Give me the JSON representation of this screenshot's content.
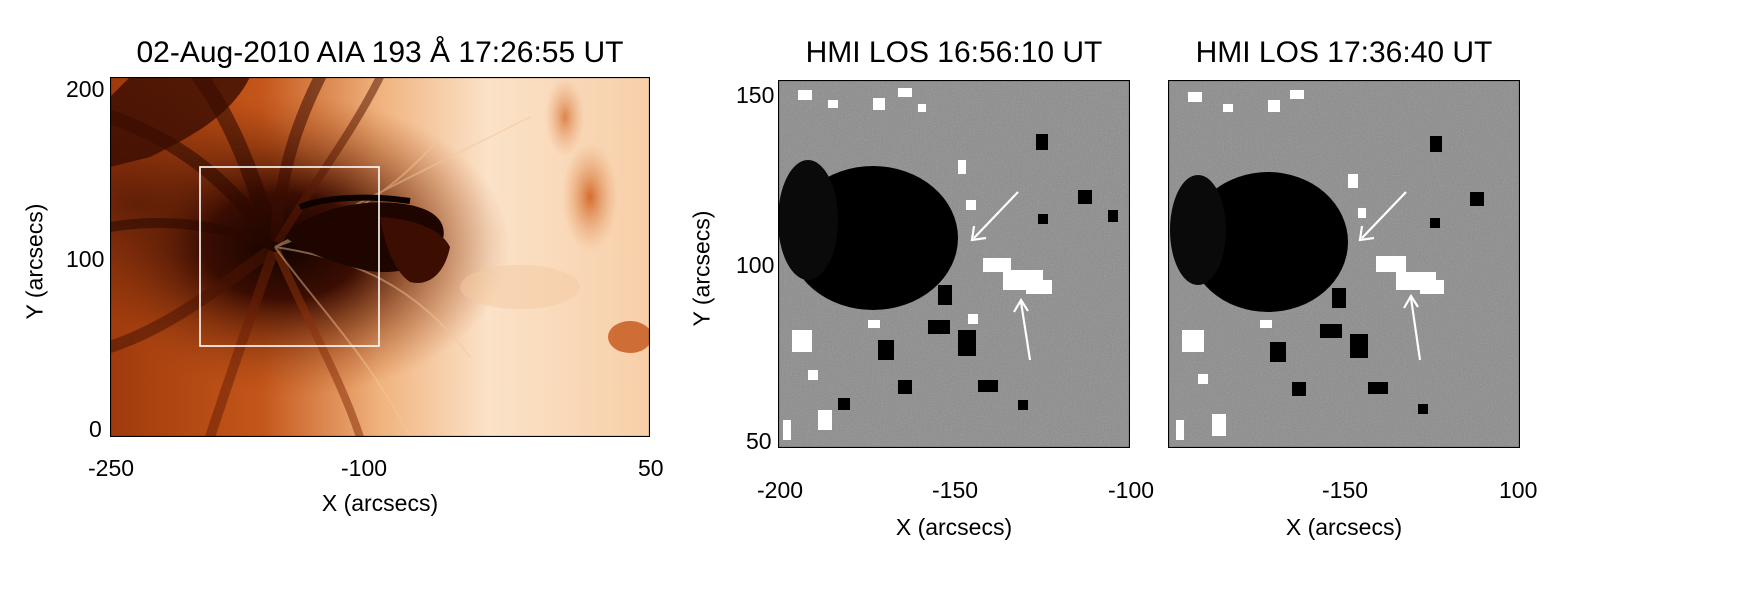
{
  "panels": {
    "aia": {
      "title": "02-Aug-2010 AIA 193 Å 17:26:55 UT",
      "xlabel": "X (arcsecs)",
      "ylabel": "Y (arcsecs)",
      "xticks": [
        "-250",
        "-100",
        "50"
      ],
      "yticks": [
        "200",
        "100",
        "0"
      ]
    },
    "hmi1": {
      "title": "HMI LOS 16:56:10 UT",
      "xlabel": "X (arcsecs)",
      "ylabel": "Y (arcsecs)",
      "xticks": [
        "-200",
        "-150",
        "-100"
      ],
      "yticks": [
        "150",
        "100",
        "50"
      ]
    },
    "hmi2": {
      "title": "HMI LOS 17:36:40 UT",
      "xlabel": "X (arcsecs)",
      "xticks": [
        "-150",
        "100"
      ]
    }
  },
  "colors": {
    "aia_dark": "#1a0500",
    "aia_mid": "#b84410",
    "aia_light": "#fbe6cf",
    "hmi_gray": "#8a8a8a",
    "frame": "#000000",
    "annotation": "#ffffff"
  }
}
